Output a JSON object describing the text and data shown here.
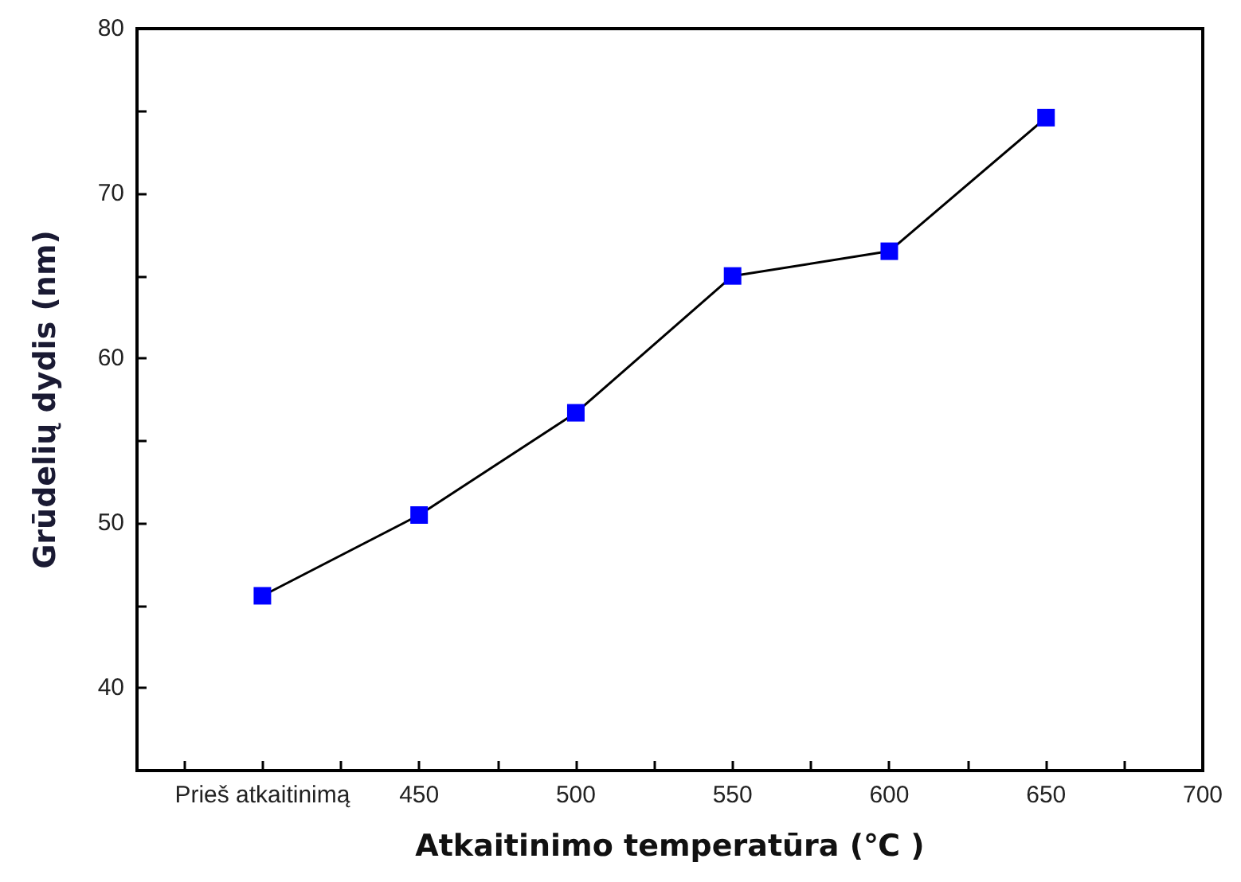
{
  "chart_data": {
    "type": "line",
    "xlabel": "Atkaitinimo temperatūra (℃ )",
    "ylabel": "Grūdelių dydis (nm)",
    "x": [
      400,
      450,
      500,
      550,
      600,
      650
    ],
    "series": [
      {
        "color": "#0000ff",
        "values": [
          45.6,
          50.5,
          56.7,
          65.0,
          66.5,
          74.6
        ]
      }
    ],
    "xlim": [
      360,
      700
    ],
    "ylim": [
      35,
      80
    ],
    "xticks": [
      {
        "value": 375,
        "label": null
      },
      {
        "value": 400,
        "label": "Prieš atkaitinimą"
      },
      {
        "value": 425,
        "label": null
      },
      450,
      {
        "value": 475,
        "label": null
      },
      500,
      {
        "value": 525,
        "label": null
      },
      550,
      {
        "value": 575,
        "label": null
      },
      600,
      {
        "value": 625,
        "label": null
      },
      650,
      {
        "value": 675,
        "label": null
      },
      700
    ],
    "yticks": [
      40,
      {
        "value": 45,
        "label": null
      },
      50,
      {
        "value": 55,
        "label": null
      },
      60,
      {
        "value": 65,
        "label": null
      },
      70,
      {
        "value": 75,
        "label": null
      },
      80
    ],
    "grid": false,
    "marker": "square",
    "line_style": "solid"
  }
}
